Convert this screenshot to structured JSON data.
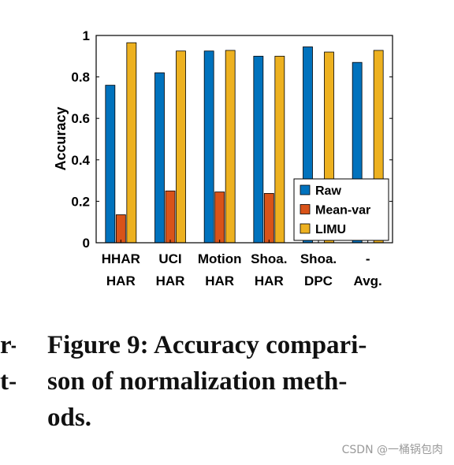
{
  "chart_data": {
    "type": "bar",
    "categories": [
      [
        "HHAR",
        "HAR"
      ],
      [
        "UCI",
        "HAR"
      ],
      [
        "Motion",
        "HAR"
      ],
      [
        "Shoa.",
        "HAR"
      ],
      [
        "Shoa.",
        "DPC"
      ],
      [
        "-",
        "Avg."
      ]
    ],
    "series": [
      {
        "name": "Raw",
        "values": [
          0.76,
          0.82,
          0.925,
          0.9,
          0.945,
          0.87
        ]
      },
      {
        "name": "Mean-var",
        "values": [
          0.135,
          0.25,
          0.245,
          0.238,
          0.0,
          0.0
        ]
      },
      {
        "name": "LIMU",
        "values": [
          0.965,
          0.925,
          0.928,
          0.9,
          0.92,
          0.928
        ]
      }
    ],
    "colors": [
      "#0072BD",
      "#D95319",
      "#EDB120"
    ],
    "ylabel": "Accuracy",
    "ylim": [
      0,
      1
    ],
    "yticks": [
      "0",
      "0.2",
      "0.4",
      "0.6",
      "0.8",
      "1"
    ],
    "legend": "bottom-right",
    "grid": false
  },
  "caption": {
    "lines": [
      "Figure 9: Accuracy compari-",
      "son of normalization meth-",
      "ods."
    ]
  },
  "margin_fragments": [
    "r-",
    "t-"
  ],
  "watermark": "CSDN @一桶锅包肉"
}
